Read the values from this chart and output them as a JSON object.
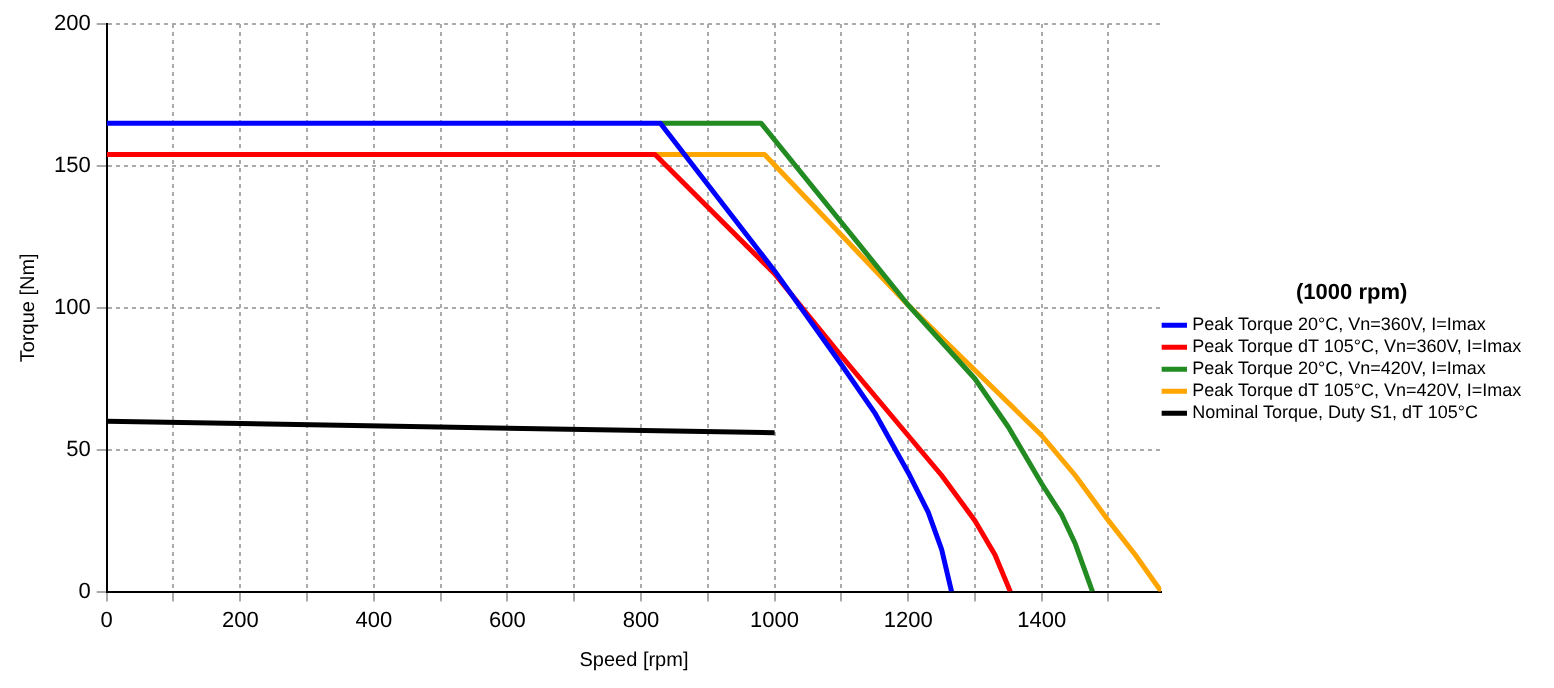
{
  "chart_data": {
    "type": "line",
    "xlabel": "Speed [rpm]",
    "ylabel": "Torque [Nm]",
    "legend_title": "(1000 rpm)",
    "legend": "right",
    "grid": true,
    "marker": "none",
    "line_style": "solid",
    "xlim": [
      0,
      1579
    ],
    "xticks": [
      0,
      {
        "value": 100,
        "label": null
      },
      200,
      {
        "value": 300,
        "label": null
      },
      400,
      {
        "value": 500,
        "label": null
      },
      600,
      {
        "value": 700,
        "label": null
      },
      800,
      {
        "value": 900,
        "label": null
      },
      1000,
      {
        "value": 1100,
        "label": null
      },
      1200,
      {
        "value": 1300,
        "label": null
      },
      1400,
      {
        "value": 1500,
        "label": null
      }
    ],
    "ylim": [
      0,
      200
    ],
    "yticks": [
      0,
      50,
      100,
      150,
      200
    ],
    "series": [
      {
        "name": "Peak Torque 20°C, Vn=360V, I=Imax",
        "color": "#0000ff",
        "x": [
          0,
          829,
          1000,
          1100,
          1150,
          1200,
          1230,
          1250,
          1265
        ],
        "values": [
          165,
          165,
          113,
          80,
          63,
          42,
          28,
          15,
          0
        ]
      },
      {
        "name": "Peak Torque dT 105°C, Vn=360V, I=Imax",
        "color": "#ff0000",
        "x": [
          0,
          821,
          1000,
          1100,
          1200,
          1250,
          1300,
          1330,
          1353
        ],
        "values": [
          154,
          154,
          112,
          83,
          55,
          41,
          25,
          13,
          0
        ]
      },
      {
        "name": "Peak Torque 20°C, Vn=420V, I=Imax",
        "color": "#228b22",
        "x": [
          829,
          980,
          1200,
          1300,
          1350,
          1400,
          1430,
          1450,
          1476
        ],
        "values": [
          165,
          165,
          101,
          75,
          58,
          38,
          27,
          17,
          0
        ]
      },
      {
        "name": "Peak Torque dT 105°C, Vn=420V, I=Imax",
        "color": "#ffa500",
        "x": [
          821,
          985,
          1200,
          1300,
          1400,
          1450,
          1500,
          1540,
          1579
        ],
        "values": [
          154,
          154,
          101,
          78,
          55,
          41,
          25,
          13,
          0
        ]
      },
      {
        "name": "Nominal Torque, Duty S1, dT 105°C",
        "color": "#000000",
        "x": [
          0,
          1000
        ],
        "values": [
          60,
          56
        ]
      }
    ]
  }
}
